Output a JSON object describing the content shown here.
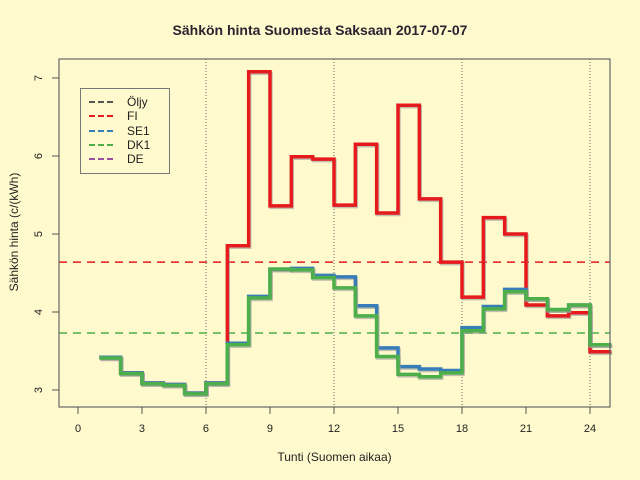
{
  "chart_data": {
    "type": "line",
    "step": true,
    "title": "Sähkön hinta Suomesta Saksaan 2017-07-07",
    "xlabel": "Tunti (Suomen aikaa)",
    "ylabel": "Sähkön hinta (c/(kWh)",
    "xlim": [
      -0.8,
      25
    ],
    "ylim": [
      2.8,
      7.2
    ],
    "x_ticks": [
      0,
      3,
      6,
      9,
      12,
      15,
      18,
      21,
      24
    ],
    "y_ticks": [
      3,
      4,
      5,
      6,
      7
    ],
    "vertical_grid": [
      6,
      12,
      18,
      24
    ],
    "legend": [
      {
        "name": "Öljy",
        "color": "#555555"
      },
      {
        "name": "FI",
        "color": "#E41A1C"
      },
      {
        "name": "SE1",
        "color": "#377EB8"
      },
      {
        "name": "DK1",
        "color": "#4DAF4A"
      },
      {
        "name": "DE",
        "color": "#984EA3"
      }
    ],
    "hours": [
      1,
      2,
      3,
      4,
      5,
      6,
      7,
      8,
      9,
      10,
      11,
      12,
      13,
      14,
      15,
      16,
      17,
      18,
      19,
      20,
      21,
      22,
      23,
      24
    ],
    "series": [
      {
        "name": "FI",
        "color": "#E41A1C",
        "values": [
          3.42,
          3.22,
          3.09,
          3.07,
          2.96,
          3.09,
          4.85,
          7.08,
          5.36,
          5.99,
          5.96,
          5.37,
          6.15,
          5.27,
          6.65,
          5.45,
          4.64,
          4.19,
          5.21,
          5.0,
          4.09,
          3.95,
          3.99,
          3.49
        ]
      },
      {
        "name": "SE1",
        "color": "#377EB8",
        "values": [
          3.42,
          3.22,
          3.09,
          3.07,
          2.96,
          3.09,
          3.6,
          4.2,
          4.55,
          4.56,
          4.47,
          4.45,
          4.08,
          3.54,
          3.3,
          3.27,
          3.25,
          3.8,
          4.07,
          4.29,
          4.17,
          4.03,
          4.09,
          3.58
        ]
      },
      {
        "name": "DK1",
        "color": "#4DAF4A",
        "values": [
          3.41,
          3.21,
          3.08,
          3.06,
          2.95,
          3.08,
          3.58,
          4.18,
          4.55,
          4.54,
          4.44,
          4.31,
          3.95,
          3.43,
          3.2,
          3.17,
          3.22,
          3.76,
          4.04,
          4.26,
          4.17,
          4.03,
          4.09,
          3.58
        ]
      }
    ],
    "mean_lines": [
      {
        "name": "FI",
        "value": 4.64,
        "color": "#E41A1C"
      },
      {
        "name": "DK1",
        "value": 3.73,
        "color": "#4DAF4A"
      }
    ]
  }
}
